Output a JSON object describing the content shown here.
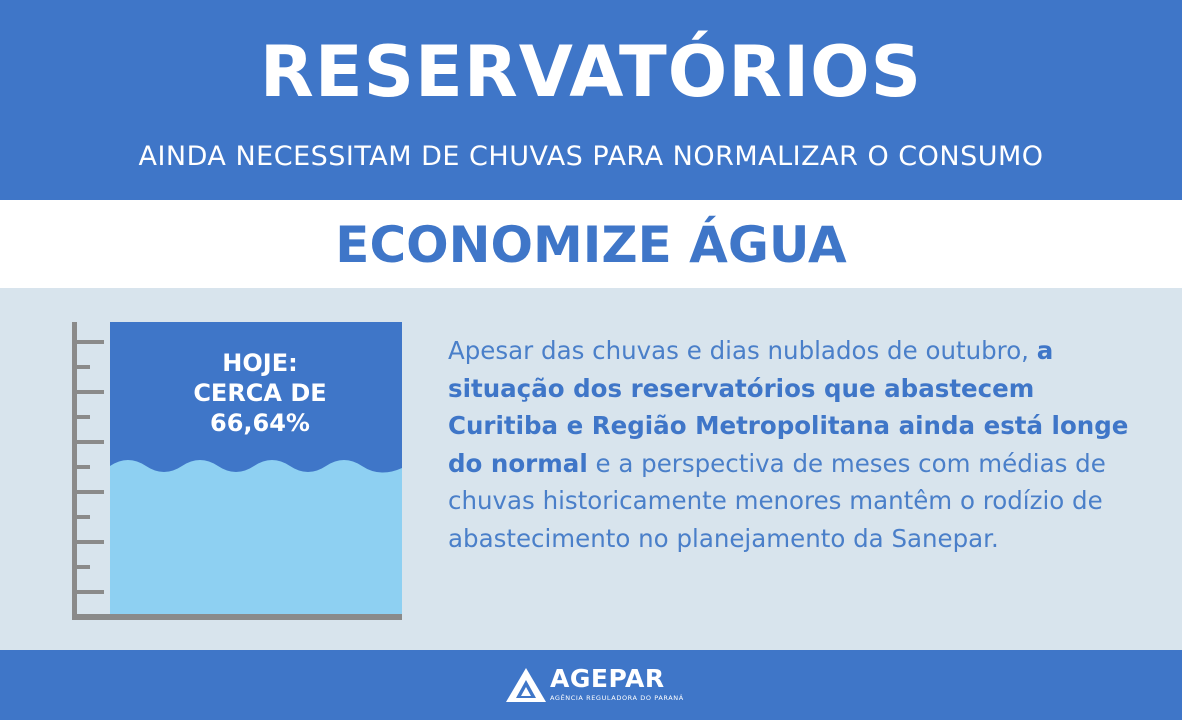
{
  "header": {
    "title": "RESERVATÓRIOS",
    "subtitle": "AINDA NECESSITAM DE CHUVAS PARA NORMALIZAR O  CONSUMO"
  },
  "banner": {
    "text": "ECONOMIZE ÁGUA"
  },
  "reservoir_gauge": {
    "label_lines": [
      "HOJE:",
      "CERCA DE",
      "66,64%"
    ],
    "fill_fraction": 0.53,
    "colors": {
      "water": "#8ed0f2",
      "sky": "#3f76c8",
      "scale": "#8a8a8a"
    }
  },
  "body": {
    "p1": "Apesar das chuvas e dias nublados de outubro, ",
    "p2": "a situação dos reservatórios que abastecem Curitiba e Região Metropolitana ainda está longe do normal",
    "p3": " e a perspectiva de meses com médias de chuvas historicamente menores mantêm o rodízio de abastecimento no planejamento da Sanepar."
  },
  "footer": {
    "logo_name": "AGEPAR",
    "logo_tagline": "AGÊNCIA REGULADORA DO PARANÁ",
    "logo_icon": "agepar-logo-icon"
  },
  "colors": {
    "primary_blue": "#3f76c8",
    "panel_background": "#d8e4ed",
    "white": "#ffffff"
  }
}
